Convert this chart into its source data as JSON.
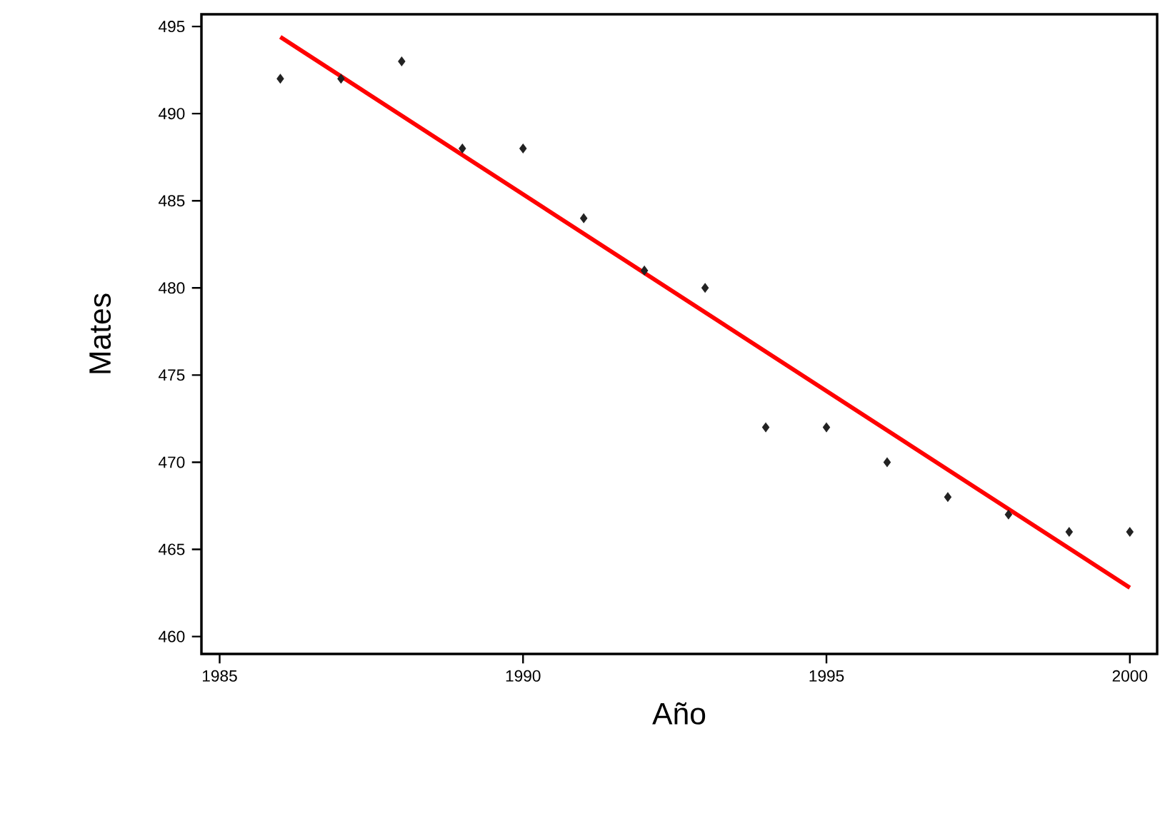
{
  "chart_data": {
    "type": "scatter",
    "xlabel": "Año",
    "ylabel": "Mates",
    "xlim": [
      1984.7,
      2000.45
    ],
    "ylim": [
      459.0,
      495.7
    ],
    "xticks": [
      1985,
      1990,
      1995,
      2000
    ],
    "yticks": [
      460,
      465,
      470,
      475,
      480,
      485,
      490,
      495
    ],
    "grid": false,
    "series": [
      {
        "marker": "diamond",
        "color": "#222222",
        "x": [
          1986,
          1987,
          1988,
          1989,
          1990,
          1991,
          1992,
          1993,
          1994,
          1995,
          1996,
          1997,
          1998,
          1999,
          2000
        ],
        "values": [
          492,
          492,
          493,
          488,
          488,
          484,
          481,
          480,
          472,
          472,
          470,
          468,
          467,
          466,
          466
        ]
      },
      {
        "type": "line",
        "color": "#ff0000",
        "x": [
          1986,
          2000
        ],
        "values": [
          494.4,
          462.8
        ],
        "line_style": "solid"
      }
    ]
  }
}
